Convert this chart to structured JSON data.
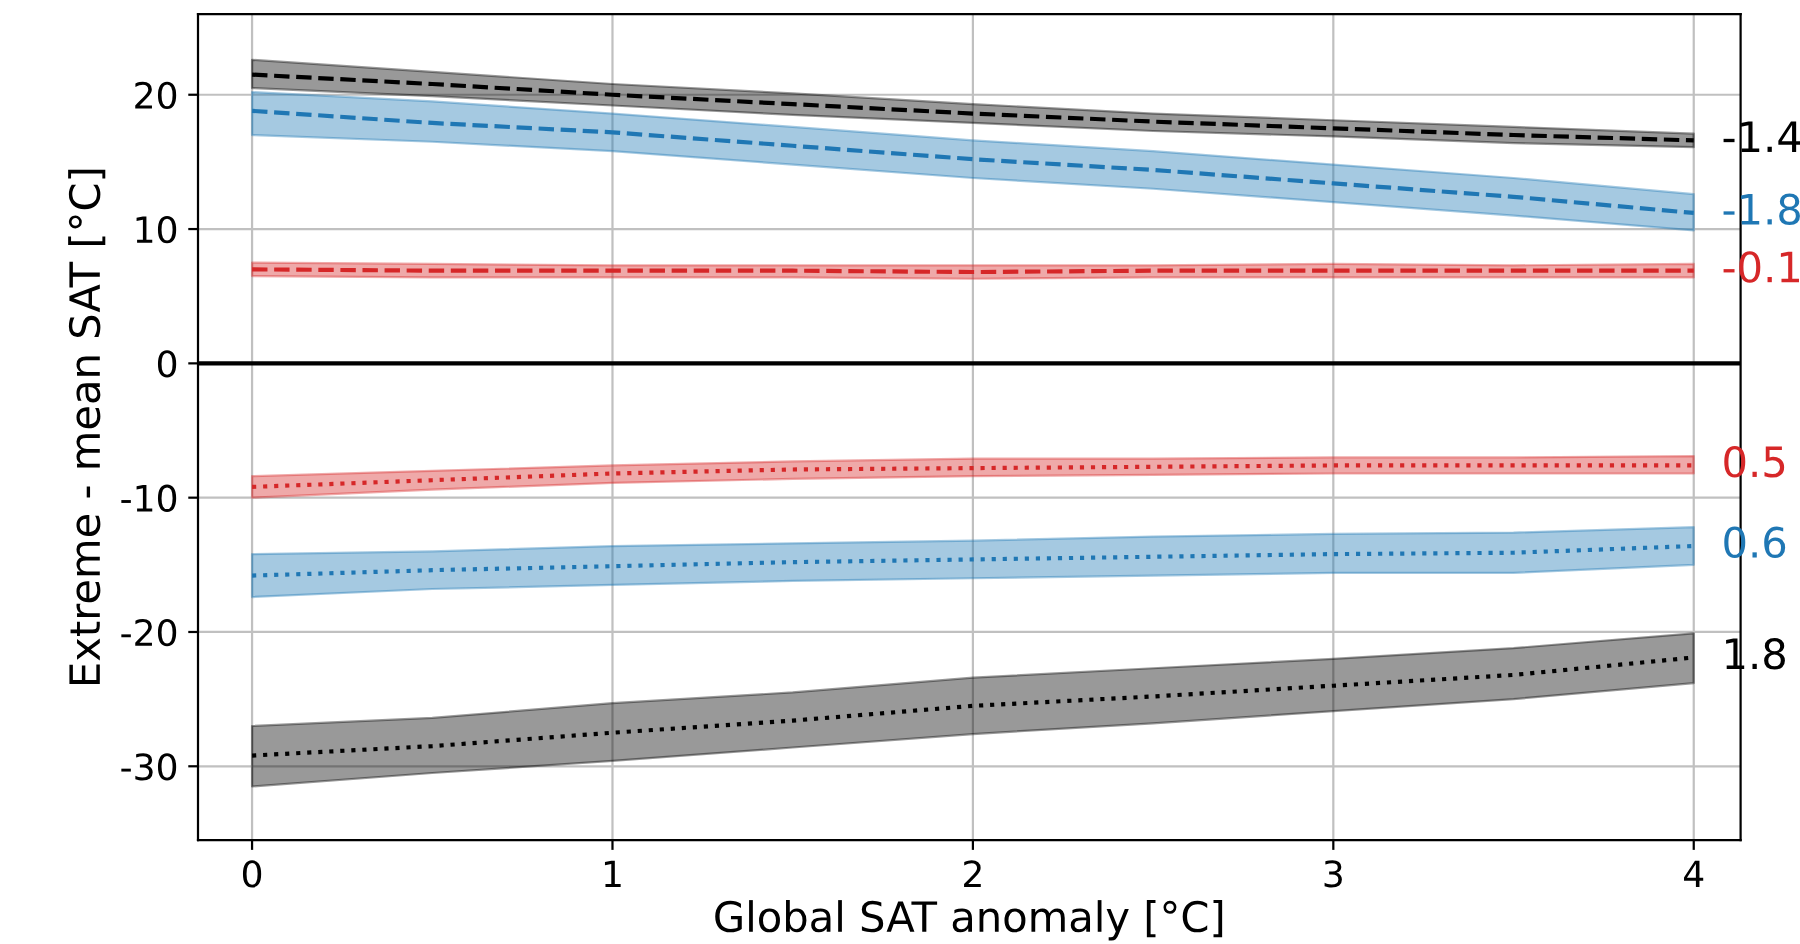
{
  "chart_data": {
    "type": "line",
    "xlabel": "Global SAT anomaly [°C]",
    "ylabel": "Extreme - mean SAT [°C]",
    "x": [
      0,
      0.5,
      1,
      1.5,
      2,
      2.5,
      3,
      3.5,
      4
    ],
    "series": [
      {
        "name": "-1.4",
        "color": "#000000",
        "line_style": "dashed",
        "values": [
          21.5,
          20.8,
          20.0,
          19.3,
          18.6,
          18.0,
          17.5,
          17.0,
          16.6
        ],
        "lower": [
          20.5,
          19.9,
          19.2,
          18.5,
          17.9,
          17.3,
          16.9,
          16.4,
          16.1
        ],
        "upper": [
          22.6,
          21.7,
          20.8,
          20.1,
          19.3,
          18.6,
          18.1,
          17.6,
          17.1
        ]
      },
      {
        "name": "-1.8",
        "color": "#1f77b4",
        "line_style": "dashed",
        "values": [
          18.8,
          17.9,
          17.2,
          16.2,
          15.2,
          14.4,
          13.4,
          12.4,
          11.2
        ],
        "lower": [
          17.0,
          16.5,
          15.8,
          14.8,
          13.8,
          13.0,
          12.0,
          11.0,
          9.9
        ],
        "upper": [
          20.2,
          19.5,
          18.6,
          17.6,
          16.6,
          15.8,
          14.8,
          13.8,
          12.6
        ]
      },
      {
        "name": "-0.1",
        "color": "#d62728",
        "line_style": "dashed",
        "values": [
          7.0,
          6.9,
          6.9,
          6.9,
          6.8,
          6.9,
          6.9,
          6.9,
          6.9
        ],
        "lower": [
          6.5,
          6.4,
          6.4,
          6.4,
          6.3,
          6.4,
          6.4,
          6.4,
          6.4
        ],
        "upper": [
          7.5,
          7.4,
          7.3,
          7.3,
          7.3,
          7.3,
          7.4,
          7.3,
          7.4
        ]
      },
      {
        "name": "0.5",
        "color": "#d62728",
        "line_style": "dotted",
        "values": [
          -9.2,
          -8.7,
          -8.2,
          -7.9,
          -7.8,
          -7.7,
          -7.6,
          -7.6,
          -7.6
        ],
        "lower": [
          -10.0,
          -9.4,
          -8.9,
          -8.6,
          -8.4,
          -8.3,
          -8.2,
          -8.2,
          -8.2
        ],
        "upper": [
          -8.4,
          -8.0,
          -7.6,
          -7.3,
          -7.1,
          -7.1,
          -7.0,
          -7.0,
          -6.9
        ]
      },
      {
        "name": "0.6",
        "color": "#1f77b4",
        "line_style": "dotted",
        "values": [
          -15.8,
          -15.4,
          -15.1,
          -14.8,
          -14.6,
          -14.4,
          -14.2,
          -14.1,
          -13.6
        ],
        "lower": [
          -17.4,
          -16.8,
          -16.5,
          -16.2,
          -16.0,
          -15.8,
          -15.6,
          -15.6,
          -15.0
        ],
        "upper": [
          -14.2,
          -14.0,
          -13.6,
          -13.4,
          -13.2,
          -12.9,
          -12.7,
          -12.6,
          -12.2
        ]
      },
      {
        "name": "1.8",
        "color": "#000000",
        "line_style": "dotted",
        "values": [
          -29.2,
          -28.5,
          -27.5,
          -26.6,
          -25.5,
          -24.8,
          -24.0,
          -23.2,
          -21.9
        ],
        "lower": [
          -31.5,
          -30.5,
          -29.6,
          -28.6,
          -27.6,
          -26.8,
          -25.9,
          -25.0,
          -23.8
        ],
        "upper": [
          -27.0,
          -26.4,
          -25.3,
          -24.5,
          -23.4,
          -22.7,
          -22.0,
          -21.2,
          -20.1
        ]
      }
    ],
    "ref_lines": [
      {
        "axis": "y",
        "value": 0,
        "color": "#000000"
      }
    ],
    "xlim": [
      -0.15,
      4.13
    ],
    "ylim": [
      -35.5,
      26
    ],
    "xticks": [
      0,
      1,
      2,
      3,
      4
    ],
    "yticks": [
      -30,
      -20,
      -10,
      0,
      10,
      20
    ],
    "grid": true,
    "legend": false
  }
}
